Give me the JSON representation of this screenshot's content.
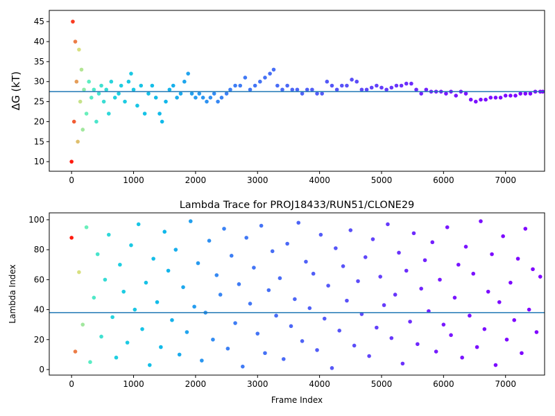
{
  "chart_data": [
    {
      "type": "scatter",
      "y_label": "ΔG (kT)",
      "x": [
        0,
        20,
        40,
        60,
        80,
        100,
        120,
        140,
        160,
        180,
        200,
        240,
        280,
        320,
        360,
        400,
        440,
        480,
        520,
        560,
        600,
        640,
        700,
        760,
        800,
        860,
        920,
        960,
        1000,
        1060,
        1120,
        1180,
        1240,
        1300,
        1360,
        1420,
        1460,
        1520,
        1580,
        1640,
        1700,
        1760,
        1820,
        1880,
        1940,
        2000,
        2060,
        2120,
        2180,
        2240,
        2300,
        2360,
        2420,
        2500,
        2560,
        2640,
        2720,
        2800,
        2880,
        2960,
        3040,
        3120,
        3200,
        3260,
        3320,
        3400,
        3480,
        3560,
        3640,
        3720,
        3800,
        3880,
        3960,
        4040,
        4120,
        4200,
        4280,
        4360,
        4440,
        4520,
        4600,
        4680,
        4760,
        4840,
        4920,
        5000,
        5080,
        5160,
        5240,
        5320,
        5400,
        5480,
        5560,
        5640,
        5720,
        5800,
        5880,
        5960,
        6040,
        6120,
        6200,
        6280,
        6360,
        6440,
        6520,
        6600,
        6680,
        6760,
        6840,
        6920,
        7000,
        7080,
        7160,
        7240,
        7320,
        7400,
        7480,
        7560,
        7600
      ],
      "values": [
        10,
        45,
        20,
        40,
        30,
        15,
        38,
        25,
        33,
        18,
        28,
        22,
        30,
        26,
        28,
        20,
        27,
        29,
        25,
        28,
        22,
        30,
        26,
        27,
        29,
        25,
        30,
        32,
        28,
        24,
        29,
        22,
        27,
        29,
        26,
        22,
        20,
        25,
        28,
        29,
        26,
        27,
        30,
        32,
        27,
        26,
        27,
        26,
        25,
        26,
        27,
        25,
        26,
        27,
        28,
        29,
        29,
        31,
        28,
        29,
        30,
        31,
        32,
        33,
        29,
        28,
        29,
        28,
        28,
        27,
        28,
        28,
        27,
        27,
        30,
        29,
        28,
        29,
        29,
        30.5,
        30,
        28,
        28,
        28.5,
        29,
        28.5,
        28,
        28.5,
        29,
        29,
        29.5,
        29.5,
        28,
        27,
        28,
        27.5,
        27.5,
        27.5,
        27,
        27.5,
        26.5,
        27.5,
        27,
        25.5,
        25,
        25.5,
        25.5,
        26,
        26,
        26,
        26.5,
        26.5,
        26.5,
        27,
        27,
        27,
        27.5,
        27.5,
        27.5
      ],
      "hline": 27.5,
      "hline_color": "#1f77b4",
      "colormap": [
        [
          0,
          "#ff1a0e"
        ],
        [
          120,
          "#d8e080"
        ],
        [
          250,
          "#60f0c0"
        ],
        [
          700,
          "#20d0e0"
        ],
        [
          1500,
          "#10b8ea"
        ],
        [
          2500,
          "#3c80f4"
        ],
        [
          4500,
          "#5a50f8"
        ],
        [
          6000,
          "#7818ff"
        ],
        [
          7600,
          "#8000ff"
        ]
      ],
      "xlim": [
        -360,
        7630
      ],
      "xticks": [
        0,
        1000,
        2000,
        3000,
        4000,
        5000,
        6000,
        7000
      ],
      "ylim": [
        7.6,
        47.8
      ],
      "yticks": [
        10,
        15,
        20,
        25,
        30,
        35,
        40,
        45
      ]
    },
    {
      "type": "scatter",
      "title": "Lambda Trace for PROJ18433/RUN51/CLONE29",
      "x_label": "Frame Index",
      "y_label": "Lambda Index",
      "x": [
        0,
        60,
        120,
        180,
        240,
        300,
        360,
        420,
        480,
        540,
        600,
        660,
        720,
        780,
        840,
        900,
        960,
        1020,
        1080,
        1140,
        1200,
        1260,
        1320,
        1380,
        1440,
        1500,
        1560,
        1620,
        1680,
        1740,
        1800,
        1860,
        1920,
        1980,
        2040,
        2100,
        2160,
        2220,
        2280,
        2340,
        2400,
        2460,
        2520,
        2580,
        2640,
        2700,
        2760,
        2820,
        2880,
        2940,
        3000,
        3060,
        3120,
        3180,
        3240,
        3300,
        3360,
        3420,
        3480,
        3540,
        3600,
        3660,
        3720,
        3780,
        3840,
        3900,
        3960,
        4020,
        4080,
        4140,
        4200,
        4260,
        4320,
        4380,
        4440,
        4500,
        4560,
        4620,
        4680,
        4740,
        4800,
        4860,
        4920,
        4980,
        5040,
        5100,
        5160,
        5220,
        5280,
        5340,
        5400,
        5460,
        5520,
        5580,
        5640,
        5700,
        5760,
        5820,
        5880,
        5940,
        6000,
        6060,
        6120,
        6180,
        6240,
        6300,
        6360,
        6420,
        6480,
        6540,
        6600,
        6660,
        6720,
        6780,
        6840,
        6900,
        6960,
        7020,
        7080,
        7140,
        7200,
        7260,
        7320,
        7380,
        7440,
        7500,
        7560
      ],
      "values": [
        88,
        12,
        65,
        30,
        95,
        5,
        48,
        77,
        22,
        60,
        90,
        35,
        8,
        70,
        52,
        18,
        83,
        40,
        97,
        27,
        58,
        3,
        74,
        45,
        15,
        92,
        66,
        33,
        80,
        10,
        55,
        25,
        99,
        42,
        71,
        6,
        38,
        86,
        20,
        63,
        50,
        94,
        14,
        76,
        31,
        57,
        2,
        88,
        44,
        68,
        24,
        96,
        11,
        53,
        79,
        36,
        61,
        7,
        84,
        29,
        47,
        98,
        19,
        72,
        41,
        64,
        13,
        90,
        34,
        56,
        1,
        81,
        26,
        69,
        46,
        93,
        16,
        59,
        37,
        75,
        9,
        87,
        28,
        62,
        43,
        97,
        21,
        50,
        78,
        4,
        66,
        32,
        91,
        17,
        54,
        73,
        39,
        85,
        12,
        60,
        30,
        95,
        23,
        48,
        70,
        8,
        82,
        36,
        64,
        15,
        99,
        27,
        52,
        77,
        3,
        45,
        89,
        20,
        58,
        33,
        74,
        11,
        94,
        40,
        67,
        25,
        62
      ],
      "hline": 38,
      "hline_color": "#1f77b4",
      "colormap": [
        [
          0,
          "#ff1a0e"
        ],
        [
          120,
          "#d8e080"
        ],
        [
          250,
          "#60f0c0"
        ],
        [
          700,
          "#20d0e0"
        ],
        [
          1500,
          "#10b8ea"
        ],
        [
          2500,
          "#3c80f4"
        ],
        [
          4500,
          "#5a50f8"
        ],
        [
          6000,
          "#7818ff"
        ],
        [
          7600,
          "#8000ff"
        ]
      ],
      "xlim": [
        -360,
        7630
      ],
      "xticks": [
        0,
        1000,
        2000,
        3000,
        4000,
        5000,
        6000,
        7000
      ],
      "ylim": [
        -3.7,
        104.6
      ],
      "yticks": [
        0,
        20,
        40,
        60,
        80,
        100
      ]
    }
  ]
}
